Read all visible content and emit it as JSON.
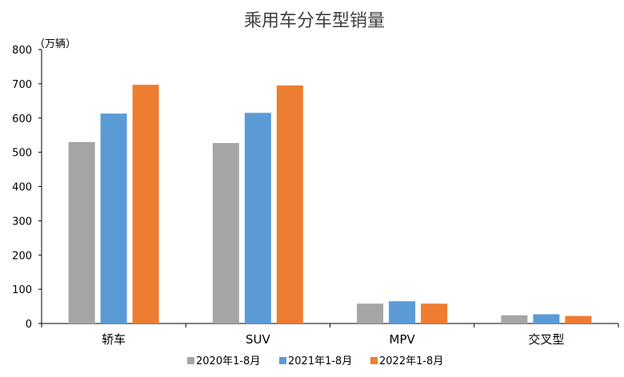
{
  "chart_data": {
    "type": "bar",
    "title": "乘用车分车型销量",
    "ylabel": "（万辆）",
    "xlabel": "",
    "categories": [
      "轿车",
      "SUV",
      "MPV",
      "交叉型"
    ],
    "ylim": [
      0,
      800
    ],
    "yticks": [
      0,
      100,
      200,
      300,
      400,
      500,
      600,
      700,
      800
    ],
    "grid": false,
    "legend_position": "bottom",
    "series": [
      {
        "name": "2020年1-8月",
        "color": "#A5A5A5",
        "values": [
          530,
          527,
          58,
          24
        ]
      },
      {
        "name": "2021年1-8月",
        "color": "#5B9BD5",
        "values": [
          613,
          615,
          65,
          27
        ]
      },
      {
        "name": "2022年1-8月",
        "color": "#ED7D31",
        "values": [
          697,
          695,
          58,
          22
        ]
      }
    ]
  }
}
